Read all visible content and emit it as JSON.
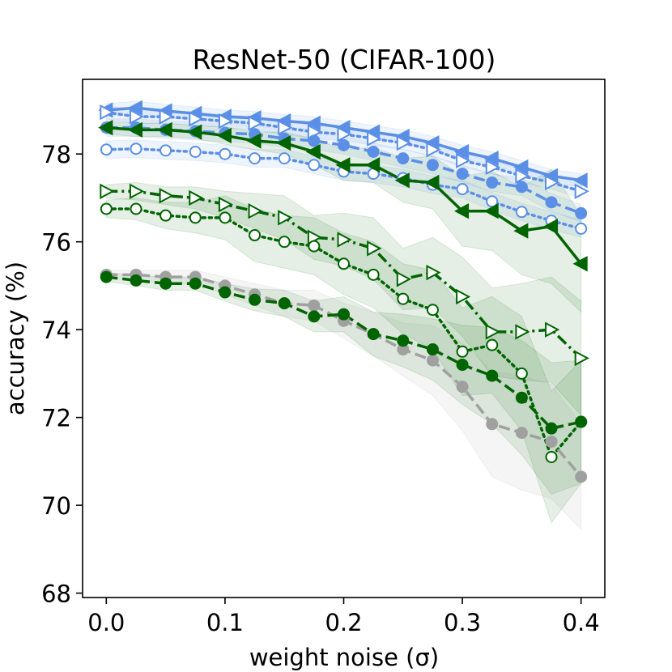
{
  "chart_data": {
    "type": "line",
    "title": "ResNet-50 (CIFAR-100)",
    "xlabel": "weight noise (σ)",
    "ylabel": "accuracy (%)",
    "xlim": [
      -0.02,
      0.42
    ],
    "ylim": [
      67.9,
      79.7
    ],
    "xticks": [
      0.0,
      0.1,
      0.2,
      0.3,
      0.4
    ],
    "xtick_labels": [
      "0.0",
      "0.1",
      "0.2",
      "0.3",
      "0.4"
    ],
    "yticks": [
      68,
      70,
      72,
      74,
      76,
      78
    ],
    "ytick_labels": [
      "68",
      "70",
      "72",
      "74",
      "76",
      "78"
    ],
    "grid": false,
    "x": [
      0.0,
      0.025,
      0.05,
      0.075,
      0.1,
      0.125,
      0.15,
      0.175,
      0.2,
      0.225,
      0.25,
      0.275,
      0.3,
      0.325,
      0.35,
      0.375,
      0.4
    ],
    "series": [
      {
        "name": "blue-left-triangle-solid",
        "color": "#5b8fe6",
        "marker": "triangle-left",
        "filled": true,
        "dash": "solid",
        "values": [
          79.0,
          79.05,
          78.98,
          78.92,
          78.85,
          78.82,
          78.75,
          78.7,
          78.6,
          78.5,
          78.4,
          78.25,
          78.05,
          77.9,
          77.7,
          77.5,
          77.4
        ],
        "band": 0.15
      },
      {
        "name": "blue-right-triangle-dotted",
        "color": "#5b8fe6",
        "marker": "triangle-right",
        "filled": false,
        "dash": "dotted",
        "values": [
          78.95,
          78.85,
          78.85,
          78.8,
          78.75,
          78.7,
          78.6,
          78.5,
          78.45,
          78.35,
          78.25,
          78.1,
          77.85,
          77.7,
          77.5,
          77.35,
          77.15
        ],
        "band": 0.15
      },
      {
        "name": "blue-circle-dashed",
        "color": "#5b8fe6",
        "marker": "circle",
        "filled": true,
        "dash": "dashed",
        "values": [
          78.6,
          78.6,
          78.55,
          78.52,
          78.48,
          78.45,
          78.35,
          78.3,
          78.2,
          78.05,
          77.9,
          77.75,
          77.55,
          77.35,
          77.25,
          76.9,
          76.65
        ],
        "band": 0.2
      },
      {
        "name": "blue-open-circle-dotted",
        "color": "#5b8fe6",
        "marker": "circle",
        "filled": false,
        "dash": "dotted",
        "values": [
          78.1,
          78.12,
          78.08,
          78.05,
          78.0,
          77.9,
          77.9,
          77.75,
          77.6,
          77.55,
          77.45,
          77.3,
          77.2,
          76.92,
          76.68,
          76.48,
          76.3
        ],
        "band": 0.2
      },
      {
        "name": "green-left-triangle-solid",
        "color": "#006400",
        "marker": "triangle-left",
        "filled": true,
        "dash": "solid",
        "values": [
          78.6,
          78.55,
          78.55,
          78.5,
          78.42,
          78.3,
          78.25,
          78.05,
          77.75,
          77.75,
          77.4,
          77.35,
          76.7,
          76.7,
          76.25,
          76.35,
          75.5
        ],
        "band": [
          0.15,
          0.15,
          0.15,
          0.15,
          0.2,
          0.2,
          0.25,
          0.3,
          0.35,
          0.4,
          0.5,
          0.6,
          0.8,
          0.9,
          1.0,
          1.3,
          1.1
        ]
      },
      {
        "name": "green-right-triangle-dashdot",
        "color": "#006400",
        "marker": "triangle-right",
        "filled": false,
        "dash": "dashdot",
        "values": [
          77.15,
          77.15,
          77.05,
          77.0,
          76.85,
          76.7,
          76.55,
          76.1,
          76.05,
          75.85,
          75.15,
          75.3,
          74.75,
          73.95,
          73.95,
          74.0,
          73.35
        ],
        "band": [
          0.15,
          0.2,
          0.2,
          0.25,
          0.3,
          0.4,
          0.5,
          0.5,
          0.6,
          0.7,
          0.7,
          0.8,
          0.9,
          1.0,
          1.1,
          1.2,
          1.3
        ]
      },
      {
        "name": "green-open-circle-dotted",
        "color": "#006400",
        "marker": "circle",
        "filled": false,
        "dash": "dotted",
        "values": [
          76.75,
          76.75,
          76.6,
          76.55,
          76.55,
          76.15,
          76.0,
          75.9,
          75.5,
          75.25,
          74.7,
          74.45,
          73.5,
          73.65,
          73.0,
          71.1,
          71.9
        ],
        "band": [
          0.2,
          0.25,
          0.3,
          0.35,
          0.5,
          0.6,
          0.6,
          0.65,
          0.7,
          0.75,
          0.8,
          0.9,
          1.0,
          1.1,
          1.3,
          1.5,
          1.4
        ]
      },
      {
        "name": "gray-circle-dashed",
        "color": "#a0a0a0",
        "marker": "circle",
        "filled": true,
        "dash": "dashed",
        "values": [
          75.25,
          75.25,
          75.2,
          75.2,
          75.0,
          74.8,
          74.6,
          74.55,
          74.2,
          73.9,
          73.55,
          73.3,
          72.7,
          71.85,
          71.65,
          71.45,
          70.65
        ],
        "band": [
          0.1,
          0.1,
          0.15,
          0.15,
          0.2,
          0.25,
          0.3,
          0.35,
          0.4,
          0.5,
          0.6,
          0.8,
          1.0,
          1.2,
          1.3,
          1.3,
          1.2
        ]
      },
      {
        "name": "green-circle-dashed",
        "color": "#006400",
        "marker": "circle",
        "filled": true,
        "dash": "dashed",
        "values": [
          75.2,
          75.12,
          75.05,
          75.05,
          74.85,
          74.68,
          74.6,
          74.3,
          74.35,
          73.9,
          73.75,
          73.55,
          73.2,
          72.95,
          72.45,
          71.75,
          71.9
        ],
        "band": [
          0.1,
          0.12,
          0.15,
          0.15,
          0.2,
          0.25,
          0.3,
          0.35,
          0.4,
          0.5,
          0.6,
          0.7,
          0.9,
          1.1,
          1.3,
          1.5,
          1.4
        ]
      }
    ]
  }
}
